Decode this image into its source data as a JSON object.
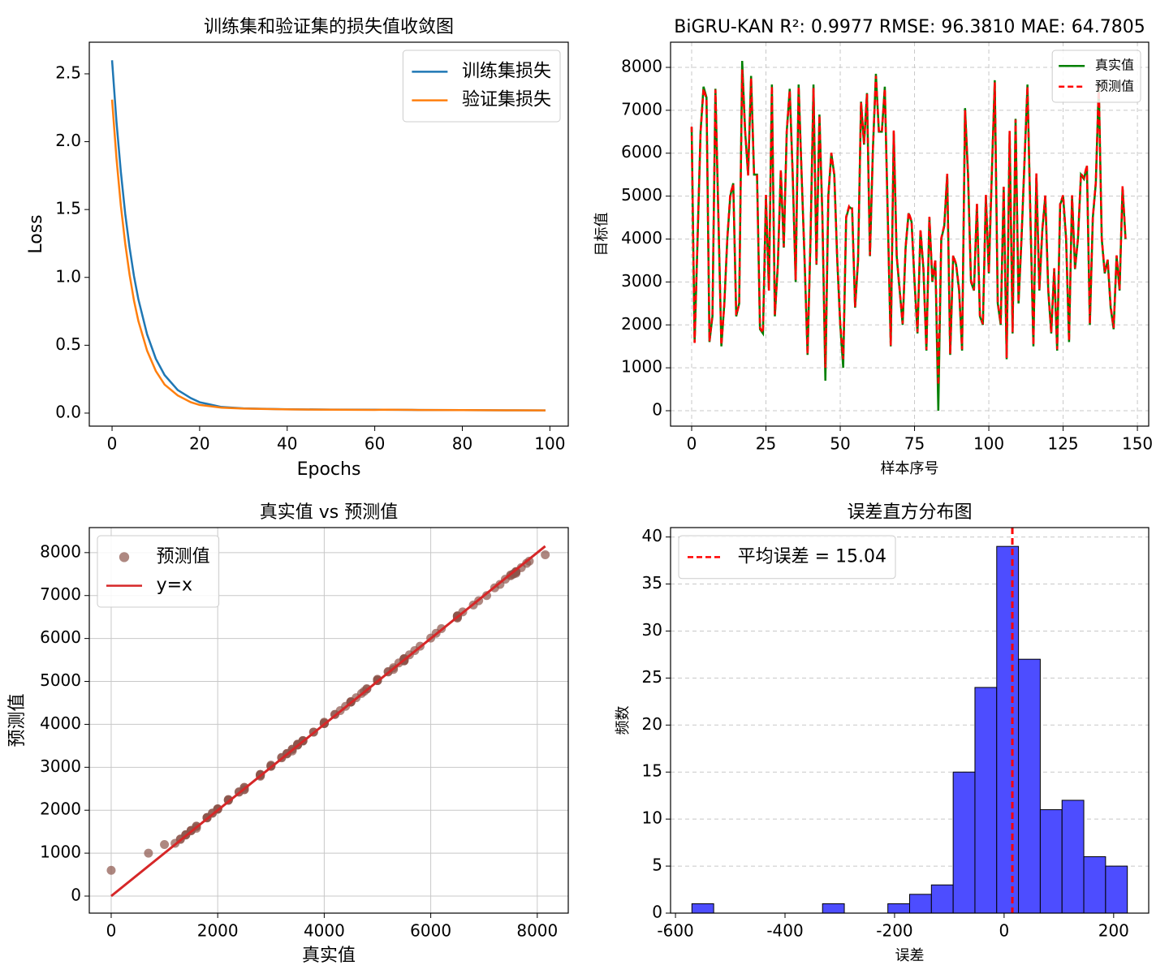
{
  "chart_data": [
    {
      "type": "line",
      "title": "训练集和验证集的损失值收敛图",
      "xlabel": "Epochs",
      "ylabel": "Loss",
      "x": [
        0,
        1,
        2,
        3,
        4,
        5,
        6,
        8,
        10,
        12,
        15,
        18,
        20,
        25,
        30,
        40,
        50,
        60,
        62,
        70,
        80,
        90,
        99
      ],
      "series": [
        {
          "name": "训练集损失",
          "color": "#1f77b4",
          "values": [
            2.6,
            2.15,
            1.78,
            1.47,
            1.22,
            1.01,
            0.84,
            0.58,
            0.4,
            0.28,
            0.17,
            0.11,
            0.08,
            0.045,
            0.035,
            0.028,
            0.026,
            0.025,
            0.025,
            0.023,
            0.022,
            0.021,
            0.02
          ]
        },
        {
          "name": "验证集损失",
          "color": "#ff7f0e",
          "values": [
            2.31,
            1.88,
            1.53,
            1.25,
            1.02,
            0.83,
            0.68,
            0.46,
            0.31,
            0.21,
            0.13,
            0.08,
            0.06,
            0.04,
            0.033,
            0.027,
            0.025,
            0.024,
            0.025,
            0.023,
            0.022,
            0.021,
            0.02
          ]
        }
      ],
      "xlim": [
        -5.2,
        104.2
      ],
      "ylim": [
        -0.096,
        2.733
      ],
      "xticks": [
        0,
        20,
        40,
        60,
        80,
        100
      ],
      "yticks": [
        {
          "value": 0,
          "label": "0.0"
        },
        0.5,
        {
          "value": 1,
          "label": "1.0"
        },
        1.5,
        {
          "value": 2,
          "label": "2.0"
        },
        2.5
      ],
      "grid": false,
      "legend": "upper right"
    },
    {
      "type": "line",
      "title": "BiGRU-KAN R²: 0.9977   RMSE: 96.3810   MAE: 64.7805",
      "xlabel": "样本序号",
      "ylabel": "目标值",
      "x": [
        0,
        1,
        2,
        3,
        4,
        5,
        6,
        7,
        8,
        9,
        10,
        11,
        12,
        13,
        14,
        15,
        16,
        17,
        18,
        19,
        20,
        21,
        22,
        23,
        24,
        25,
        26,
        27,
        28,
        29,
        30,
        31,
        32,
        33,
        34,
        35,
        36,
        37,
        38,
        39,
        40,
        41,
        42,
        43,
        44,
        45,
        46,
        47,
        48,
        49,
        50,
        51,
        52,
        53,
        54,
        55,
        56,
        57,
        58,
        59,
        60,
        61,
        62,
        63,
        64,
        65,
        66,
        67,
        68,
        69,
        70,
        71,
        72,
        73,
        74,
        75,
        76,
        77,
        78,
        79,
        80,
        81,
        82,
        83,
        84,
        85,
        86,
        87,
        88,
        89,
        90,
        91,
        92,
        93,
        94,
        95,
        96,
        97,
        98,
        99,
        100,
        101,
        102,
        103,
        104,
        105,
        106,
        107,
        108,
        109,
        110,
        111,
        112,
        113,
        114,
        115,
        116,
        117,
        118,
        119,
        120,
        121,
        122,
        123,
        124,
        125,
        126,
        127,
        128,
        129,
        130,
        131,
        132,
        133,
        134,
        135,
        136,
        137,
        138,
        139,
        140,
        141,
        142,
        143,
        144,
        145,
        146
      ],
      "series": [
        {
          "name": "真实值",
          "color": "#008000",
          "values": [
            6600,
            1600,
            4000,
            6500,
            7550,
            7300,
            1600,
            2200,
            7500,
            4500,
            1500,
            2500,
            4000,
            5000,
            5300,
            2200,
            2500,
            8150,
            6500,
            5500,
            7800,
            5500,
            5500,
            1900,
            1800,
            5000,
            2800,
            7600,
            2200,
            3400,
            5600,
            3800,
            6500,
            7500,
            5500,
            3000,
            7600,
            5500,
            3500,
            1300,
            4000,
            7600,
            3400,
            6900,
            4500,
            700,
            5000,
            6000,
            5500,
            3500,
            2000,
            1000,
            4500,
            4750,
            4700,
            2400,
            3500,
            7200,
            6200,
            7400,
            3600,
            6100,
            7850,
            6500,
            6500,
            7550,
            4500,
            1500,
            6500,
            3600,
            2800,
            2000,
            3800,
            4600,
            4400,
            3000,
            1800,
            4200,
            3300,
            1400,
            4500,
            3000,
            3500,
            0,
            4000,
            4300,
            5500,
            1300,
            3600,
            3400,
            2800,
            1400,
            7050,
            5500,
            3000,
            2800,
            4800,
            2200,
            2000,
            5000,
            3200,
            5500,
            7700,
            2500,
            2000,
            5200,
            1200,
            6500,
            1800,
            6800,
            2500,
            4000,
            5800,
            7600,
            4500,
            1500,
            5500,
            2800,
            4200,
            5000,
            2800,
            1800,
            3300,
            1400,
            4800,
            5000,
            4000,
            1600,
            5000,
            3300,
            4000,
            5500,
            5400,
            5700,
            2000,
            4500,
            5300,
            7600,
            4000,
            3200,
            3500,
            2400,
            1900,
            3600,
            2800,
            5200,
            4000
          ]
        },
        {
          "name": "预测值",
          "color": "#ff0000",
          "dash": "dashed",
          "values": [
            6620,
            1580,
            4050,
            6480,
            7500,
            7260,
            1620,
            2250,
            7480,
            4520,
            1530,
            2480,
            4020,
            5050,
            5280,
            2230,
            2480,
            7950,
            6520,
            5480,
            7750,
            5520,
            5480,
            1930,
            1820,
            5030,
            2790,
            7560,
            2240,
            3380,
            5620,
            3820,
            6510,
            7460,
            5520,
            3050,
            7550,
            5520,
            3540,
            1320,
            4020,
            7520,
            3420,
            6880,
            4530,
            1000,
            5030,
            6010,
            5480,
            3520,
            2030,
            1200,
            4520,
            4770,
            4720,
            2420,
            3530,
            7180,
            6230,
            7380,
            3620,
            6120,
            7800,
            6520,
            6480,
            7500,
            4520,
            1520,
            6530,
            3610,
            2820,
            2030,
            3820,
            4620,
            4420,
            3020,
            1830,
            4230,
            3310,
            1420,
            4520,
            3030,
            3520,
            600,
            4020,
            4320,
            5520,
            1330,
            3620,
            3420,
            2830,
            1430,
            7000,
            5530,
            3030,
            2810,
            4830,
            2230,
            2020,
            5030,
            3220,
            5520,
            7650,
            2530,
            2030,
            5220,
            1230,
            6520,
            1830,
            6780,
            2530,
            4030,
            5820,
            7550,
            4520,
            1530,
            5530,
            2830,
            4230,
            5020,
            2830,
            1830,
            3320,
            1430,
            4820,
            5020,
            4020,
            1630,
            5020,
            3320,
            4030,
            5520,
            5430,
            5720,
            2030,
            4520,
            5320,
            7550,
            4030,
            3230,
            3520,
            2430,
            1930,
            3620,
            2830,
            5230,
            4020
          ]
        }
      ],
      "xlim": [
        -7.1,
        153.8
      ],
      "ylim": [
        -359,
        8586
      ],
      "xticks": [
        0,
        25,
        50,
        75,
        100,
        125,
        150
      ],
      "yticks": [
        0,
        1000,
        2000,
        3000,
        4000,
        5000,
        6000,
        7000,
        8000
      ],
      "grid": "both",
      "grid_style": "dashed",
      "legend": "upper right"
    },
    {
      "type": "scatter",
      "title": "真实值 vs 预测值",
      "xlabel": "真实值",
      "ylabel": "预测值",
      "series": [
        {
          "name": "预测值",
          "color": "#8c564b",
          "x": [
            6600,
            1600,
            4000,
            6500,
            7550,
            7300,
            1600,
            2200,
            7500,
            4500,
            1500,
            2500,
            4000,
            5000,
            5300,
            2200,
            2500,
            8150,
            6500,
            5500,
            7800,
            5500,
            5500,
            1900,
            1800,
            5000,
            2800,
            7600,
            2200,
            3400,
            5600,
            3800,
            6500,
            7500,
            5500,
            3000,
            7600,
            5500,
            3500,
            1300,
            4000,
            7600,
            3400,
            6900,
            4500,
            700,
            5000,
            6000,
            5500,
            3500,
            2000,
            1000,
            4500,
            4750,
            4700,
            2400,
            3500,
            7200,
            6200,
            7400,
            3600,
            6100,
            7850,
            6500,
            6500,
            7550,
            4500,
            1500,
            6500,
            3600,
            2800,
            2000,
            3800,
            4600,
            4400,
            3000,
            1800,
            4200,
            3300,
            1400,
            4500,
            3000,
            3500,
            0,
            4000,
            4300,
            5500,
            1300,
            3600,
            3400,
            2800,
            1400,
            7050,
            5500,
            3000,
            2800,
            4800,
            2200,
            2000,
            5000,
            3200,
            5500,
            7700,
            2500,
            2000,
            5200,
            1200,
            6500,
            1800,
            6800,
            2500,
            4000,
            5800,
            7600,
            4500,
            1500,
            5500,
            2800,
            4200,
            5000,
            2800,
            1800,
            3300,
            1400,
            4800,
            5000,
            4000,
            1600,
            5000,
            3300,
            4000,
            5500,
            5400,
            5700,
            2000,
            4500,
            5300,
            7600,
            4000,
            3200,
            3500,
            2400,
            1900,
            3600,
            2800,
            5200,
            4000
          ],
          "values": [
            6620,
            1580,
            4050,
            6480,
            7500,
            7260,
            1620,
            2250,
            7480,
            4520,
            1530,
            2480,
            4020,
            5050,
            5280,
            2230,
            2480,
            7950,
            6520,
            5480,
            7750,
            5520,
            5480,
            1930,
            1820,
            5030,
            2790,
            7560,
            2240,
            3380,
            5620,
            3820,
            6510,
            7460,
            5520,
            3050,
            7550,
            5520,
            3540,
            1320,
            4020,
            7520,
            3420,
            6880,
            4530,
            1000,
            5030,
            6010,
            5480,
            3520,
            2030,
            1200,
            4520,
            4770,
            4720,
            2420,
            3530,
            7180,
            6230,
            7380,
            3620,
            6120,
            7800,
            6520,
            6480,
            7500,
            4520,
            1520,
            6530,
            3610,
            2820,
            2030,
            3820,
            4620,
            4420,
            3020,
            1830,
            4230,
            3310,
            1420,
            4520,
            3030,
            3520,
            600,
            4020,
            4320,
            5520,
            1330,
            3620,
            3420,
            2830,
            1430,
            7000,
            5530,
            3030,
            2810,
            4830,
            2230,
            2020,
            5030,
            3220,
            5520,
            7650,
            2530,
            2030,
            5220,
            1230,
            6520,
            1830,
            6780,
            2530,
            4030,
            5820,
            7550,
            4520,
            1530,
            5530,
            2830,
            4230,
            5020,
            2830,
            1830,
            3320,
            1430,
            4820,
            5020,
            4020,
            1630,
            5020,
            3320,
            4030,
            5520,
            5430,
            5720,
            2030,
            4520,
            5320,
            7550,
            4030,
            3230,
            3520,
            2430,
            1930,
            3620,
            2830,
            5230,
            4020
          ]
        }
      ],
      "reference_line": {
        "name": "y=x",
        "color": "#d62728"
      },
      "xlim": [
        -411,
        8582
      ],
      "ylim": [
        -397,
        8583
      ],
      "xticks": [
        0,
        2000,
        4000,
        6000,
        8000
      ],
      "yticks": [
        0,
        1000,
        2000,
        3000,
        4000,
        5000,
        6000,
        7000,
        8000
      ],
      "grid": "both",
      "grid_style": "solid",
      "legend": "upper left"
    },
    {
      "type": "histogram",
      "title": "误差直方分布图",
      "xlabel": "误差",
      "ylabel": "频数",
      "bins": [
        -570,
        -530.25,
        -490.5,
        -450.75,
        -411,
        -371.25,
        -331.5,
        -291.75,
        -252,
        -212.25,
        -172.5,
        -132.75,
        -93,
        -53.25,
        -13.5,
        26.25,
        66,
        105.75,
        145.5,
        185.25,
        225
      ],
      "values": [
        1,
        0,
        0,
        0,
        0,
        0,
        1,
        0,
        0,
        1,
        2,
        3,
        15,
        24,
        39,
        27,
        11,
        12,
        6,
        5
      ],
      "color": "#4d4dff",
      "edgecolor": "#000000",
      "mean": 15.04,
      "mean_label": "平均误差 = 15.04",
      "mean_color": "#ff0000",
      "xlim": [
        -609,
        264
      ],
      "ylim": [
        0,
        41
      ],
      "xticks": [
        -600,
        -400,
        -200,
        0,
        200
      ],
      "yticks": [
        0,
        5,
        10,
        15,
        20,
        25,
        30,
        35,
        40
      ],
      "grid": "y",
      "grid_style": "dashed",
      "legend": "upper left"
    }
  ]
}
